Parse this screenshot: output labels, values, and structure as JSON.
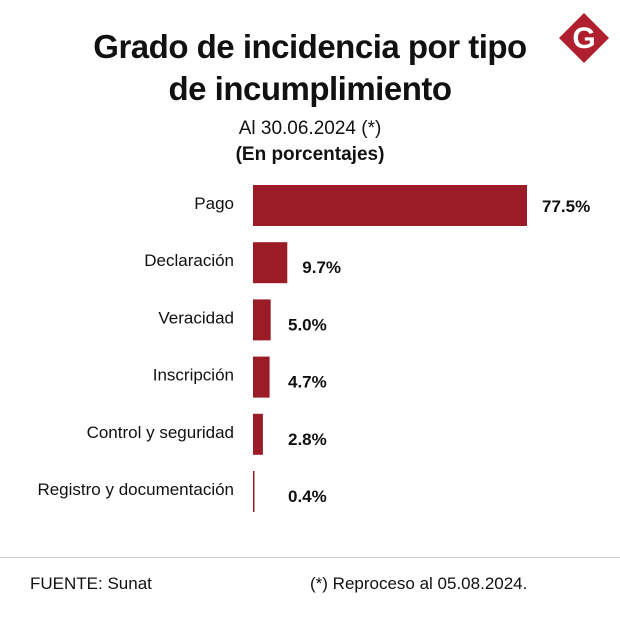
{
  "header": {
    "title_line1": "Grado de incidencia por tipo",
    "title_line2": "de incumplimiento",
    "date_line": "Al 30.06.2024 (*)",
    "unit_line": "(En porcentajes)",
    "logo_letter": "G"
  },
  "footer": {
    "source": "FUENTE: Sunat",
    "note": "(*) Reproceso al 05.08.2024."
  },
  "colors": {
    "bar": "#9b1c27",
    "logo": "#b01f2e",
    "text": "#111111"
  },
  "chart_data": {
    "type": "bar",
    "orientation": "horizontal",
    "categories": [
      "Pago",
      "Declaración",
      "Veracidad",
      "Inscripción",
      "Control y seguridad",
      "Registro y documentación"
    ],
    "values": [
      77.5,
      9.7,
      5.0,
      4.7,
      2.8,
      0.4
    ],
    "value_labels": [
      "77.5%",
      "9.7%",
      "5.0%",
      "4.7%",
      "2.8%",
      "0.4%"
    ],
    "xlim": [
      0,
      77.5
    ],
    "grid": false,
    "legend": "none"
  }
}
